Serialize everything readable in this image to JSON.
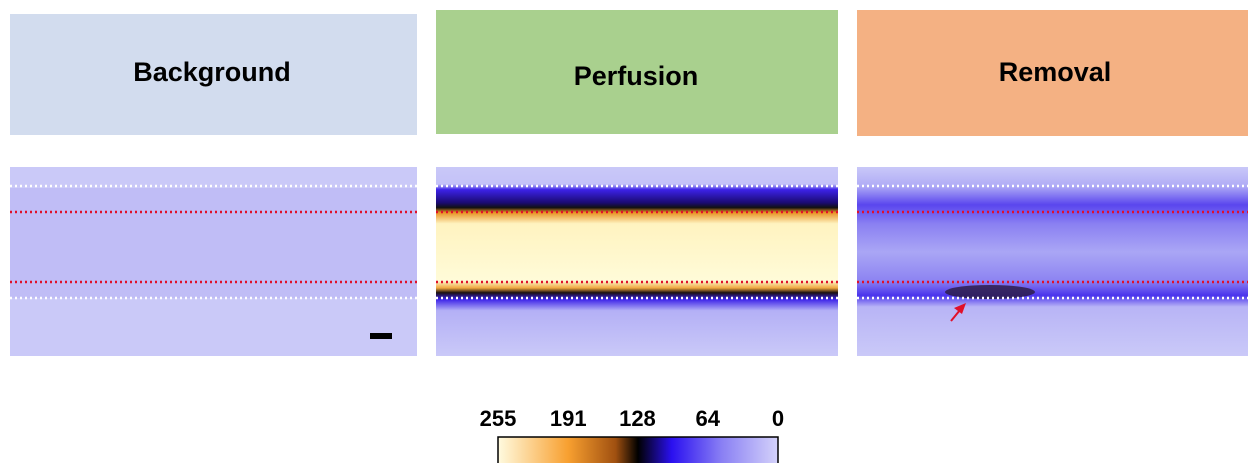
{
  "panels": [
    {
      "title": "Background"
    },
    {
      "title": "Perfusion"
    },
    {
      "title": "Removal"
    }
  ],
  "colorbar": {
    "ticks": [
      255,
      191,
      128,
      64,
      0
    ]
  }
}
